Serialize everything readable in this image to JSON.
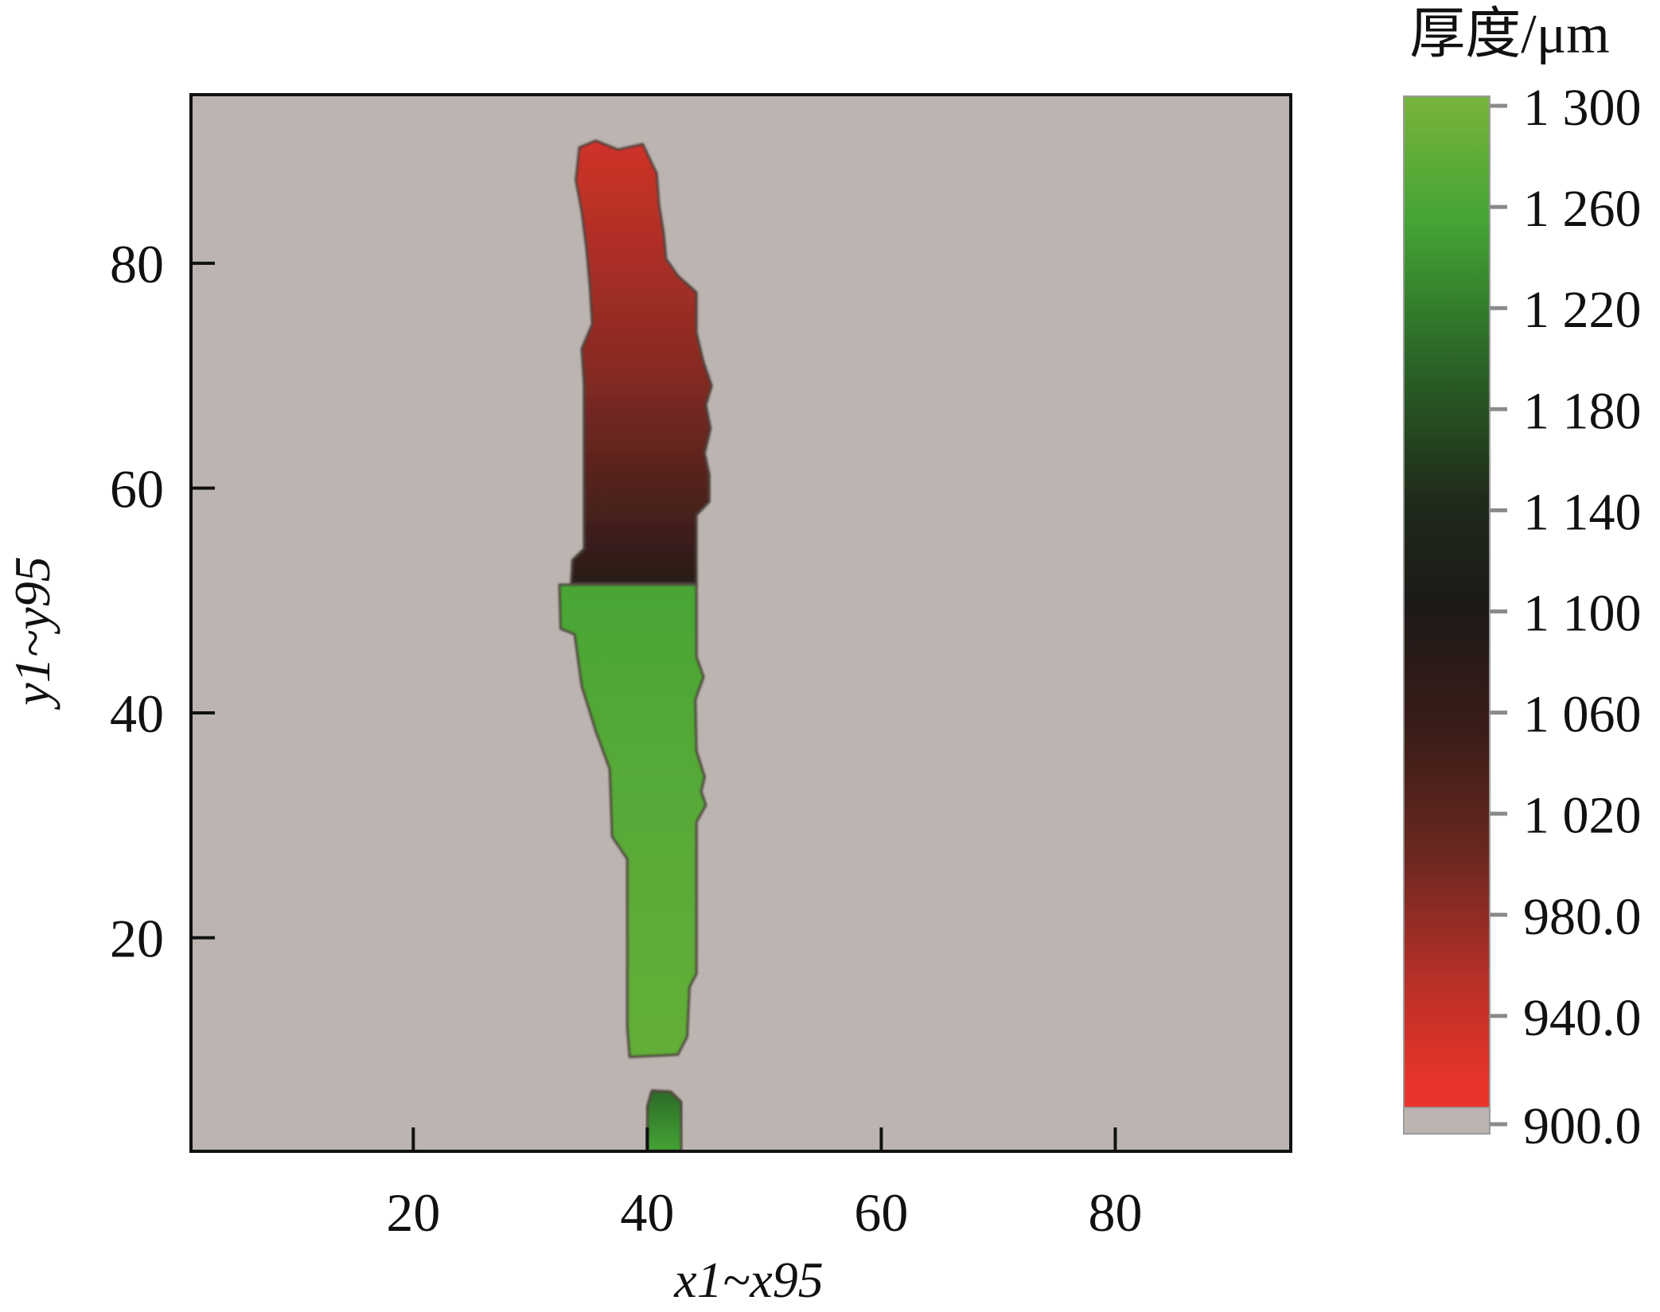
{
  "chart_data": {
    "type": "heatmap",
    "title": "",
    "xlabel": "x1~x95",
    "ylabel": "y1~y95",
    "xlim": [
      1,
      95
    ],
    "ylim": [
      1,
      95
    ],
    "x_ticks": [
      20,
      40,
      60,
      80
    ],
    "y_ticks": [
      20,
      40,
      60,
      80
    ],
    "background_color": "#bcb4b0",
    "grid": false,
    "colorbar": {
      "title": "厚度/μm",
      "ticks": [
        {
          "value": 1300,
          "label": "1 300"
        },
        {
          "value": 1260,
          "label": "1 260"
        },
        {
          "value": 1220,
          "label": "1 220"
        },
        {
          "value": 1180,
          "label": "1 180"
        },
        {
          "value": 1140,
          "label": "1 140"
        },
        {
          "value": 1100,
          "label": "1 100"
        },
        {
          "value": 1060,
          "label": "1 060"
        },
        {
          "value": 1020,
          "label": "1 020"
        },
        {
          "value": 980,
          "label": "980.0"
        },
        {
          "value": 940,
          "label": "940.0"
        },
        {
          "value": 900,
          "label": "900.0"
        }
      ],
      "stops": [
        {
          "value": 1300,
          "color": "#78b43c"
        },
        {
          "value": 1250,
          "color": "#44a434"
        },
        {
          "value": 1200,
          "color": "#2c6a28"
        },
        {
          "value": 1140,
          "color": "#1f2a1a"
        },
        {
          "value": 1100,
          "color": "#1c1a18"
        },
        {
          "value": 1050,
          "color": "#3a1c18"
        },
        {
          "value": 1000,
          "color": "#6a2820"
        },
        {
          "value": 950,
          "color": "#b83028"
        },
        {
          "value": 910,
          "color": "#e8342a"
        }
      ]
    },
    "regions": [
      {
        "name": "upper",
        "value": 980,
        "bottom_value": 1080,
        "top_value": 930,
        "outline": [
          [
            33.5,
            51.5
          ],
          [
            44.2,
            51.5
          ],
          [
            44.2,
            57.6
          ],
          [
            45.3,
            58.8
          ],
          [
            45.3,
            61.2
          ],
          [
            44.9,
            63.1
          ],
          [
            45.4,
            65.3
          ],
          [
            45.0,
            67.4
          ],
          [
            45.5,
            69.1
          ],
          [
            44.8,
            71.2
          ],
          [
            44.2,
            73.8
          ],
          [
            44.2,
            77.4
          ],
          [
            42.6,
            78.9
          ],
          [
            41.6,
            80.4
          ],
          [
            41.4,
            82.6
          ],
          [
            41.0,
            85.2
          ],
          [
            40.8,
            88.0
          ],
          [
            39.6,
            90.6
          ],
          [
            37.5,
            90.1
          ],
          [
            35.6,
            90.9
          ],
          [
            34.2,
            90.3
          ],
          [
            33.9,
            87.4
          ],
          [
            34.4,
            84.6
          ],
          [
            34.8,
            81.4
          ],
          [
            35.1,
            78.0
          ],
          [
            35.3,
            74.6
          ],
          [
            34.4,
            72.4
          ],
          [
            34.6,
            69.2
          ],
          [
            34.6,
            64.2
          ],
          [
            34.6,
            59.0
          ],
          [
            34.6,
            54.6
          ],
          [
            33.6,
            53.6
          ]
        ]
      },
      {
        "name": "lower",
        "value": 1270,
        "bottom_value": 1280,
        "top_value": 1255,
        "outline": [
          [
            32.5,
            51.4
          ],
          [
            44.2,
            51.4
          ],
          [
            44.2,
            45.0
          ],
          [
            44.8,
            43.2
          ],
          [
            44.1,
            41.2
          ],
          [
            44.2,
            36.6
          ],
          [
            44.9,
            34.3
          ],
          [
            44.6,
            33.0
          ],
          [
            45.0,
            31.8
          ],
          [
            44.2,
            30.3
          ],
          [
            44.2,
            21.5
          ],
          [
            44.2,
            16.8
          ],
          [
            43.6,
            15.6
          ],
          [
            43.4,
            11.2
          ],
          [
            42.6,
            9.6
          ],
          [
            38.5,
            9.4
          ],
          [
            38.3,
            12.0
          ],
          [
            38.3,
            27.0
          ],
          [
            37.0,
            29.0
          ],
          [
            36.8,
            35.0
          ],
          [
            35.6,
            38.4
          ],
          [
            34.4,
            42.4
          ],
          [
            33.8,
            47.0
          ],
          [
            32.6,
            47.5
          ]
        ]
      },
      {
        "name": "bottom-fragment",
        "value": 1225,
        "bottom_value": 1250,
        "top_value": 1200,
        "outline": [
          [
            40.0,
            1.0
          ],
          [
            42.9,
            1.0
          ],
          [
            42.9,
            5.4
          ],
          [
            42.0,
            6.3
          ],
          [
            40.4,
            6.4
          ],
          [
            40.0,
            5.0
          ]
        ]
      }
    ]
  }
}
